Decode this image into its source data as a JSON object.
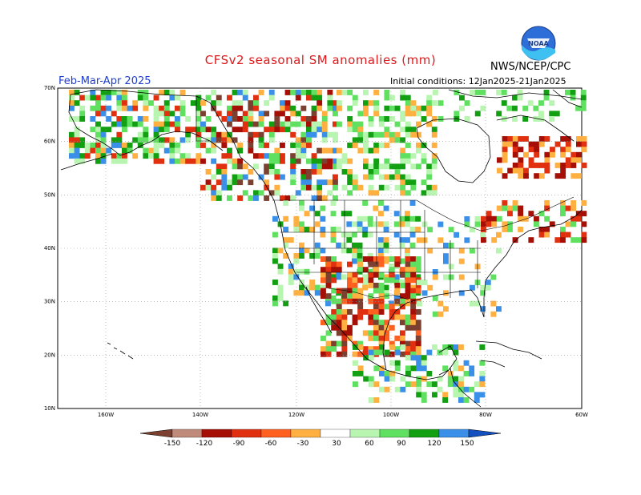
{
  "header": {
    "title": "CFSv2 seasonal SM anomalies (mm)",
    "period": "Feb-Mar-Apr 2025",
    "initial_conditions": "Initial conditions: 12Jan2025-21Jan2025",
    "agency": "NWS/NCEP/CPC",
    "logo_text": "NOAA"
  },
  "map": {
    "lat_labels": [
      "70N",
      "60N",
      "50N",
      "40N",
      "30N",
      "20N",
      "10N"
    ],
    "lon_labels": [
      "160W",
      "140W",
      "120W",
      "100W",
      "80W",
      "60W"
    ],
    "lat_range": [
      10,
      70
    ],
    "lon_range": [
      -170,
      -60
    ],
    "grid": "dotted",
    "ocean_color": "#ffffff",
    "coastline_color": "#000000"
  },
  "colorbar": {
    "labels": [
      "-150",
      "-120",
      "-90",
      "-60",
      "-30",
      "30",
      "60",
      "90",
      "120",
      "150"
    ],
    "colors": [
      "#7b4030",
      "#c08a7a",
      "#a50f05",
      "#e03010",
      "#ff6020",
      "#ffb040",
      "#ffffff",
      "#b8f5b0",
      "#60e060",
      "#12a012",
      "#3a8fe8",
      "#1450c0"
    ]
  },
  "anomaly_regions": [
    {
      "name": "alaska-north-slope",
      "category": "120",
      "color": "#12a012"
    },
    {
      "name": "yukon",
      "category": "150",
      "color": "#3a8fe8"
    },
    {
      "name": "northern-mexico",
      "category": "-90",
      "color": "#a50f05"
    },
    {
      "name": "quebec",
      "category": "-60",
      "color": "#e03010"
    }
  ]
}
